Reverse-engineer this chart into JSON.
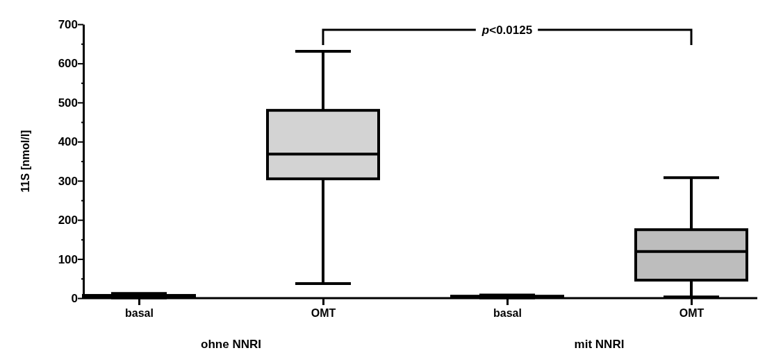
{
  "chart_data": {
    "type": "box",
    "ylabel": "11S [nmol/l]",
    "categories": [
      "basal",
      "OMT",
      "basal",
      "OMT"
    ],
    "boxes": [
      {
        "low": 1,
        "q1": 2,
        "median": 4,
        "q3": 7,
        "high": 12
      },
      {
        "low": 37,
        "q1": 305,
        "median": 368,
        "q3": 480,
        "high": 631
      },
      {
        "low": 1,
        "q1": 2,
        "median": 3,
        "q3": 5,
        "high": 8
      },
      {
        "low": 3,
        "q1": 46,
        "median": 119,
        "q3": 175,
        "high": 308
      }
    ],
    "colors": [
      "#d3d3d3",
      "#d3d3d3",
      "#d3d3d3",
      "#bdbdbd"
    ],
    "ylim": [
      0,
      700
    ],
    "yticks": [
      0,
      {
        "value": 50,
        "label": null
      },
      100,
      {
        "value": 150,
        "label": null
      },
      200,
      {
        "value": 250,
        "label": null
      },
      300,
      {
        "value": 350,
        "label": null
      },
      400,
      {
        "value": 450,
        "label": null
      },
      500,
      {
        "value": 550,
        "label": null
      },
      600,
      {
        "value": 650,
        "label": null
      },
      700
    ],
    "annotations": [
      "ohne NNRI",
      "mit NNRI",
      "p<0.0125"
    ]
  }
}
